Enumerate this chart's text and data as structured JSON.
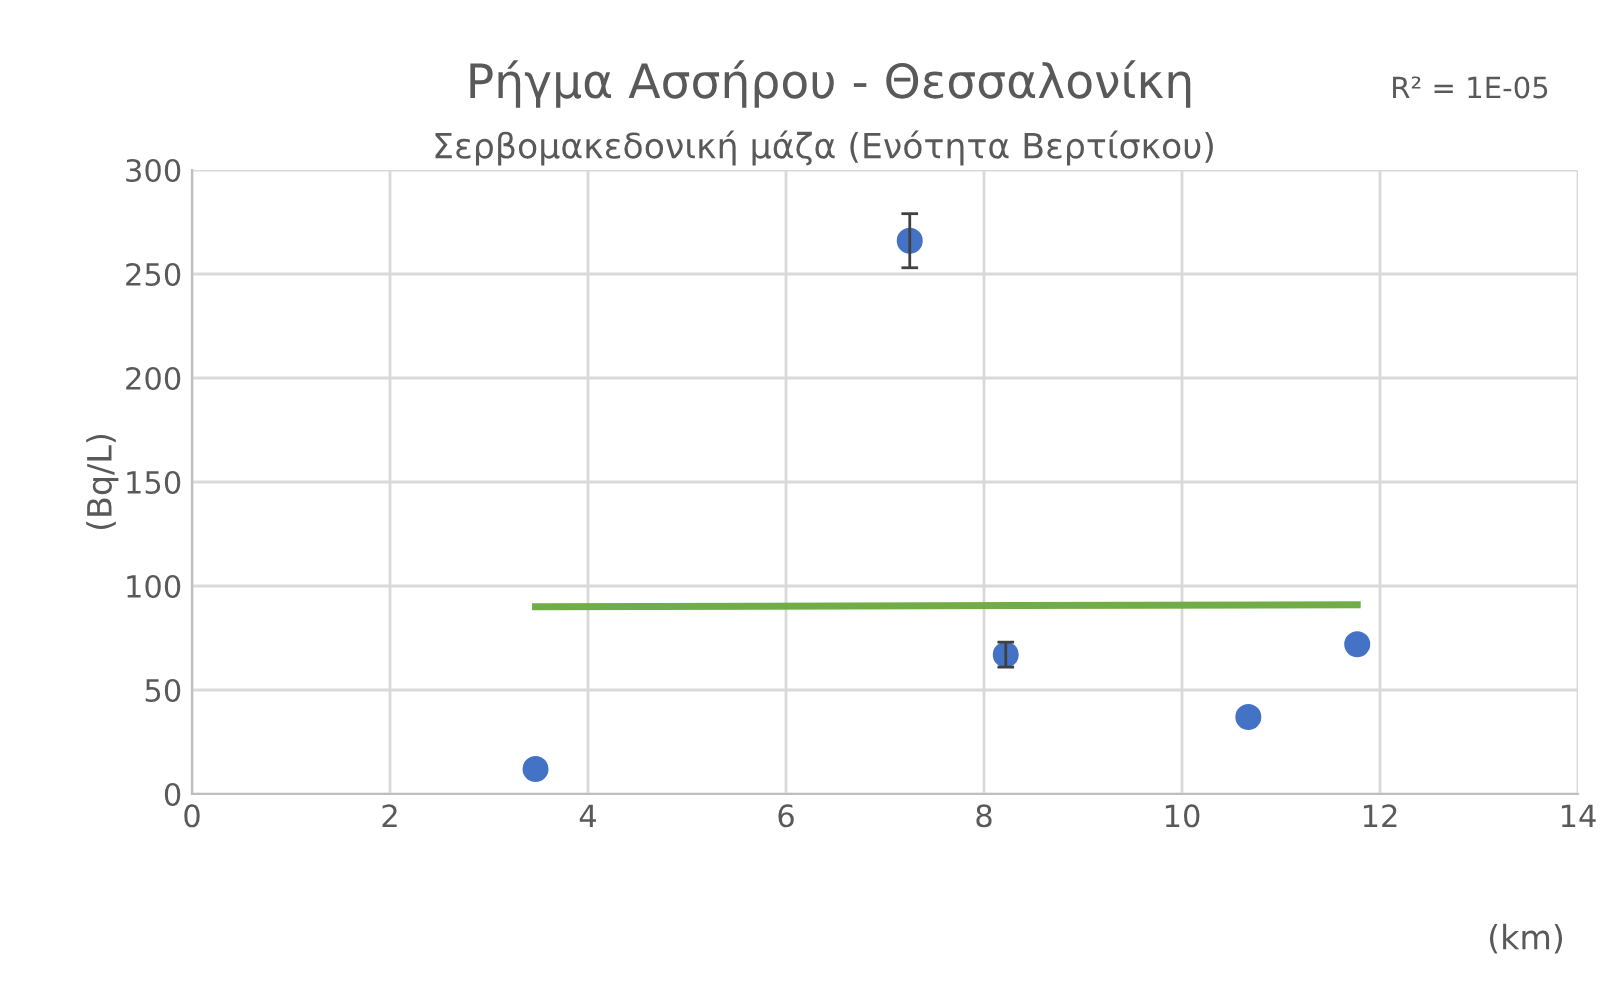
{
  "chart_data": {
    "type": "scatter",
    "title": "Ρήγμα Ασσήρου - Θεσσαλονίκη",
    "subtitle": "Σερβομακεδονική μάζα (Ενότητα Βερτίσκου)",
    "xlabel": "(km)",
    "ylabel": "(Bq/L)",
    "annotations": [
      "R² = 1E-05"
    ],
    "series": [
      {
        "color": "#4472c4",
        "x": [
          3.47,
          7.25,
          8.22,
          10.67,
          11.77
        ],
        "values": [
          12,
          266,
          67,
          37,
          72
        ],
        "errors": [
          null,
          13,
          6,
          null,
          null
        ],
        "marker": "circle"
      },
      {
        "type": "line",
        "color": "#70ad47",
        "x": [
          3.47,
          11.77
        ],
        "values": [
          90,
          91
        ],
        "marker": "none"
      }
    ],
    "xlim": [
      0,
      14
    ],
    "xticks": [
      0,
      2,
      4,
      6,
      8,
      10,
      12,
      14
    ],
    "ylim": [
      0,
      300
    ],
    "yticks": [
      0,
      50,
      100,
      150,
      200,
      250,
      300
    ],
    "grid": true,
    "legend": false
  }
}
